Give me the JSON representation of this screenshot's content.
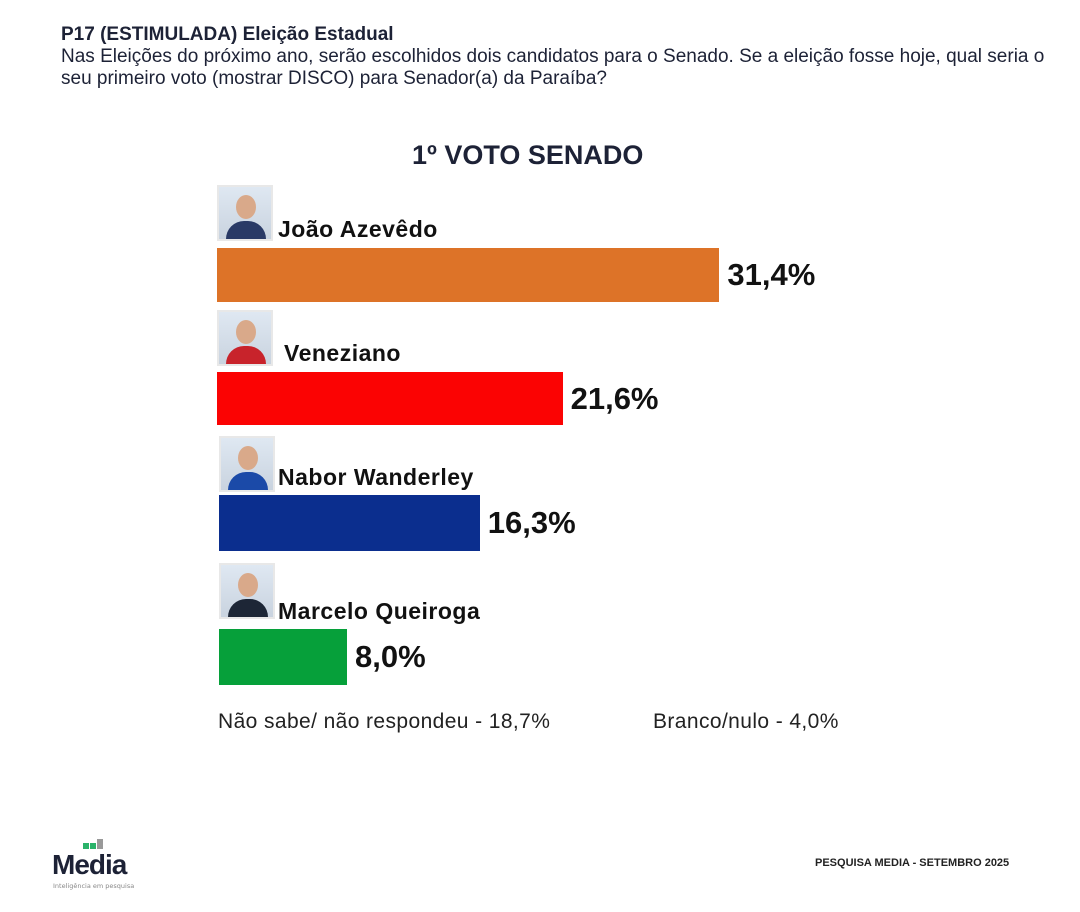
{
  "header": {
    "question": "P17  (ESTIMULADA) Eleição Estadual",
    "text": "Nas Eleições do próximo ano, serão escolhidos dois candidatos para o Senado. Se a eleição fosse hoje, qual seria o seu primeiro voto (mostrar DISCO) para Senador(a) da Paraíba?"
  },
  "chart_data": {
    "type": "bar",
    "orientation": "horizontal",
    "title": "1º VOTO SENADO",
    "categories": [
      "João Azevêdo",
      "Veneziano",
      "Nabor Wanderley",
      "Marcelo Queiroga"
    ],
    "values": [
      31.4,
      21.6,
      16.3,
      8.0
    ],
    "labels": [
      "31,4%",
      "21,6%",
      "16,3%",
      "8,0%"
    ],
    "colors": [
      "#dd7328",
      "#fb0303",
      "#0b2e8e",
      "#06a03a"
    ],
    "grid": false,
    "notes": [
      "Não sabe/ não respondeu - 18,7%",
      "Branco/nulo - 4,0%"
    ]
  },
  "footer": {
    "source": "PESQUISA MEDIA - SETEMBRO 2025"
  },
  "logo": {
    "name": "Media",
    "tagline": "Inteligência em pesquisa"
  }
}
